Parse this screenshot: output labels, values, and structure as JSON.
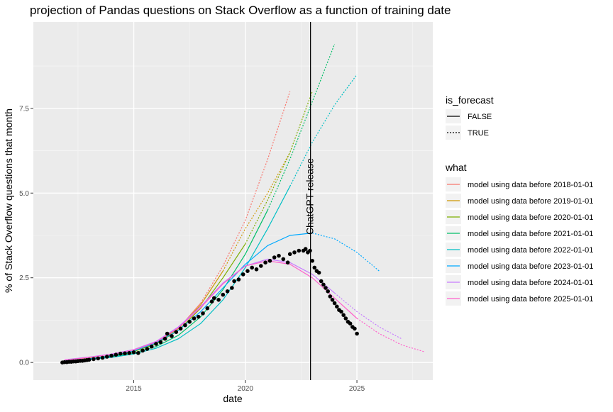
{
  "chart_data": {
    "type": "line",
    "title": "projection of Pandas questions on Stack Overflow as a function of training date",
    "xlabel": "date",
    "ylabel": "% of Stack Overflow questions that month",
    "x_ticks": [
      2015,
      2020,
      2025
    ],
    "y_ticks": [
      0.0,
      2.5,
      5.0,
      7.5
    ],
    "y_tick_labels": [
      "0.0",
      "2.5",
      "5.0",
      "7.5"
    ],
    "xlim": [
      2010.5,
      2028.4
    ],
    "ylim": [
      -0.52,
      10.05
    ],
    "grid": true,
    "vline": {
      "x": 2022.92,
      "label": "ChatGPT release"
    },
    "legend_position": "right",
    "legend_linetype": {
      "title": "is_forecast",
      "items": [
        {
          "label": "FALSE",
          "dash": "solid"
        },
        {
          "label": "TRUE",
          "dash": "dotted"
        }
      ]
    },
    "legend_what_title": "what",
    "series": [
      {
        "name": "model using data before 2018-01-01",
        "color": "#F8766D",
        "points": [
          [
            2011.9,
            0.05
          ],
          [
            2013,
            0.12
          ],
          [
            2014,
            0.2
          ],
          [
            2015,
            0.33
          ],
          [
            2016,
            0.58
          ],
          [
            2017,
            1.0
          ],
          [
            2018,
            1.75
          ],
          [
            2019,
            2.85
          ],
          [
            2020,
            4.2
          ],
          [
            2021,
            6.0
          ],
          [
            2022,
            8.0
          ]
        ],
        "forecast_from": 2018.0
      },
      {
        "name": "model using data before 2019-01-01",
        "color": "#CD9600",
        "points": [
          [
            2011.9,
            0.05
          ],
          [
            2013,
            0.12
          ],
          [
            2014,
            0.2
          ],
          [
            2015,
            0.33
          ],
          [
            2016,
            0.58
          ],
          [
            2017,
            1.0
          ],
          [
            2018,
            1.7
          ],
          [
            2019,
            2.7
          ],
          [
            2020,
            3.95
          ],
          [
            2021,
            5.0
          ],
          [
            2022,
            6.2
          ]
        ],
        "forecast_from": 2019.0
      },
      {
        "name": "model using data before 2020-01-01",
        "color": "#7CAE00",
        "points": [
          [
            2011.9,
            0.05
          ],
          [
            2013,
            0.11
          ],
          [
            2014,
            0.19
          ],
          [
            2015,
            0.32
          ],
          [
            2016,
            0.55
          ],
          [
            2017,
            0.95
          ],
          [
            2018,
            1.6
          ],
          [
            2019,
            2.5
          ],
          [
            2020,
            3.5
          ],
          [
            2021,
            4.8
          ],
          [
            2022,
            6.2
          ],
          [
            2023,
            8.0
          ]
        ],
        "forecast_from": 2020.0
      },
      {
        "name": "model using data before 2021-01-01",
        "color": "#00BE67",
        "points": [
          [
            2011.9,
            0.04
          ],
          [
            2013,
            0.1
          ],
          [
            2014,
            0.17
          ],
          [
            2015,
            0.28
          ],
          [
            2016,
            0.47
          ],
          [
            2017,
            0.8
          ],
          [
            2018,
            1.35
          ],
          [
            2019,
            2.15
          ],
          [
            2020,
            3.2
          ],
          [
            2021,
            4.5
          ],
          [
            2022,
            6.0
          ],
          [
            2023,
            7.7
          ],
          [
            2024,
            9.4
          ]
        ],
        "forecast_from": 2021.0
      },
      {
        "name": "model using data before 2022-01-01",
        "color": "#00BFC4",
        "points": [
          [
            2011.9,
            0.04
          ],
          [
            2013,
            0.09
          ],
          [
            2014,
            0.15
          ],
          [
            2015,
            0.25
          ],
          [
            2016,
            0.42
          ],
          [
            2017,
            0.7
          ],
          [
            2018,
            1.15
          ],
          [
            2019,
            1.85
          ],
          [
            2020,
            2.8
          ],
          [
            2021,
            3.95
          ],
          [
            2022,
            5.2
          ],
          [
            2023,
            6.5
          ],
          [
            2024,
            7.6
          ],
          [
            2025,
            8.5
          ]
        ],
        "forecast_from": 2022.0
      },
      {
        "name": "model using data before 2023-01-01",
        "color": "#00A9FF",
        "points": [
          [
            2011.9,
            0.05
          ],
          [
            2013,
            0.11
          ],
          [
            2014,
            0.2
          ],
          [
            2015,
            0.34
          ],
          [
            2016,
            0.58
          ],
          [
            2017,
            0.95
          ],
          [
            2018,
            1.5
          ],
          [
            2019,
            2.2
          ],
          [
            2020,
            2.9
          ],
          [
            2021,
            3.45
          ],
          [
            2022,
            3.75
          ],
          [
            2023,
            3.82
          ],
          [
            2024,
            3.65
          ],
          [
            2025,
            3.25
          ],
          [
            2026,
            2.7
          ]
        ],
        "forecast_from": 2023.0
      },
      {
        "name": "model using data before 2024-01-01",
        "color": "#C77CFF",
        "points": [
          [
            2011.9,
            0.08
          ],
          [
            2013,
            0.16
          ],
          [
            2014,
            0.25
          ],
          [
            2015,
            0.38
          ],
          [
            2016,
            0.62
          ],
          [
            2017,
            1.05
          ],
          [
            2018,
            1.65
          ],
          [
            2019,
            2.35
          ],
          [
            2020,
            2.85
          ],
          [
            2021,
            3.05
          ],
          [
            2022,
            2.95
          ],
          [
            2023,
            2.6
          ],
          [
            2024,
            2.05
          ],
          [
            2025,
            1.5
          ],
          [
            2026,
            1.05
          ],
          [
            2027,
            0.7
          ]
        ],
        "forecast_from": 2024.0
      },
      {
        "name": "model using data before 2025-01-01",
        "color": "#FF61CC",
        "points": [
          [
            2011.9,
            0.07
          ],
          [
            2013,
            0.15
          ],
          [
            2014,
            0.24
          ],
          [
            2015,
            0.37
          ],
          [
            2016,
            0.6
          ],
          [
            2017,
            1.02
          ],
          [
            2018,
            1.62
          ],
          [
            2019,
            2.32
          ],
          [
            2020,
            2.85
          ],
          [
            2021,
            3.0
          ],
          [
            2022,
            2.9
          ],
          [
            2023,
            2.5
          ],
          [
            2024,
            1.9
          ],
          [
            2025,
            1.3
          ],
          [
            2026,
            0.85
          ],
          [
            2027,
            0.52
          ],
          [
            2028,
            0.32
          ]
        ],
        "forecast_from": 2025.0
      }
    ],
    "observed": {
      "color": "#000000",
      "points": [
        [
          2011.8,
          0.0
        ],
        [
          2011.9,
          0.01
        ],
        [
          2012.0,
          0.01
        ],
        [
          2012.1,
          0.02
        ],
        [
          2012.2,
          0.02
        ],
        [
          2012.3,
          0.03
        ],
        [
          2012.4,
          0.03
        ],
        [
          2012.5,
          0.04
        ],
        [
          2012.6,
          0.05
        ],
        [
          2012.7,
          0.05
        ],
        [
          2012.8,
          0.06
        ],
        [
          2012.9,
          0.07
        ],
        [
          2013.0,
          0.08
        ],
        [
          2013.2,
          0.1
        ],
        [
          2013.4,
          0.12
        ],
        [
          2013.6,
          0.14
        ],
        [
          2013.8,
          0.17
        ],
        [
          2014.0,
          0.2
        ],
        [
          2014.2,
          0.23
        ],
        [
          2014.4,
          0.26
        ],
        [
          2014.6,
          0.27
        ],
        [
          2014.8,
          0.28
        ],
        [
          2015.0,
          0.3
        ],
        [
          2015.2,
          0.28
        ],
        [
          2015.4,
          0.35
        ],
        [
          2015.6,
          0.4
        ],
        [
          2015.8,
          0.47
        ],
        [
          2016.0,
          0.55
        ],
        [
          2016.2,
          0.6
        ],
        [
          2016.4,
          0.7
        ],
        [
          2016.5,
          0.85
        ],
        [
          2016.7,
          0.78
        ],
        [
          2016.9,
          0.9
        ],
        [
          2017.1,
          1.0
        ],
        [
          2017.3,
          1.1
        ],
        [
          2017.5,
          1.2
        ],
        [
          2017.7,
          1.3
        ],
        [
          2017.9,
          1.35
        ],
        [
          2018.1,
          1.45
        ],
        [
          2018.3,
          1.6
        ],
        [
          2018.5,
          1.8
        ],
        [
          2018.6,
          1.9
        ],
        [
          2018.8,
          1.85
        ],
        [
          2019.0,
          2.0
        ],
        [
          2019.2,
          2.1
        ],
        [
          2019.4,
          2.2
        ],
        [
          2019.5,
          2.4
        ],
        [
          2019.7,
          2.45
        ],
        [
          2019.9,
          2.6
        ],
        [
          2020.1,
          2.7
        ],
        [
          2020.3,
          2.8
        ],
        [
          2020.5,
          2.75
        ],
        [
          2020.7,
          2.85
        ],
        [
          2020.9,
          2.95
        ],
        [
          2021.1,
          3.0
        ],
        [
          2021.3,
          3.1
        ],
        [
          2021.5,
          3.15
        ],
        [
          2021.7,
          3.05
        ],
        [
          2021.9,
          2.95
        ],
        [
          2022.0,
          3.2
        ],
        [
          2022.2,
          3.25
        ],
        [
          2022.4,
          3.3
        ],
        [
          2022.6,
          3.3
        ],
        [
          2022.7,
          3.35
        ],
        [
          2022.8,
          3.25
        ],
        [
          2022.9,
          3.3
        ],
        [
          2023.0,
          3.0
        ],
        [
          2023.1,
          2.8
        ],
        [
          2023.2,
          2.7
        ],
        [
          2023.3,
          2.65
        ],
        [
          2023.4,
          2.4
        ],
        [
          2023.5,
          2.3
        ],
        [
          2023.6,
          2.2
        ],
        [
          2023.7,
          2.1
        ],
        [
          2023.8,
          1.95
        ],
        [
          2023.9,
          1.85
        ],
        [
          2024.0,
          1.75
        ],
        [
          2024.1,
          1.65
        ],
        [
          2024.2,
          1.55
        ],
        [
          2024.3,
          1.5
        ],
        [
          2024.4,
          1.4
        ],
        [
          2024.5,
          1.3
        ],
        [
          2024.6,
          1.2
        ],
        [
          2024.7,
          1.15
        ],
        [
          2024.8,
          1.05
        ],
        [
          2024.9,
          1.0
        ],
        [
          2025.0,
          0.85
        ]
      ]
    }
  }
}
